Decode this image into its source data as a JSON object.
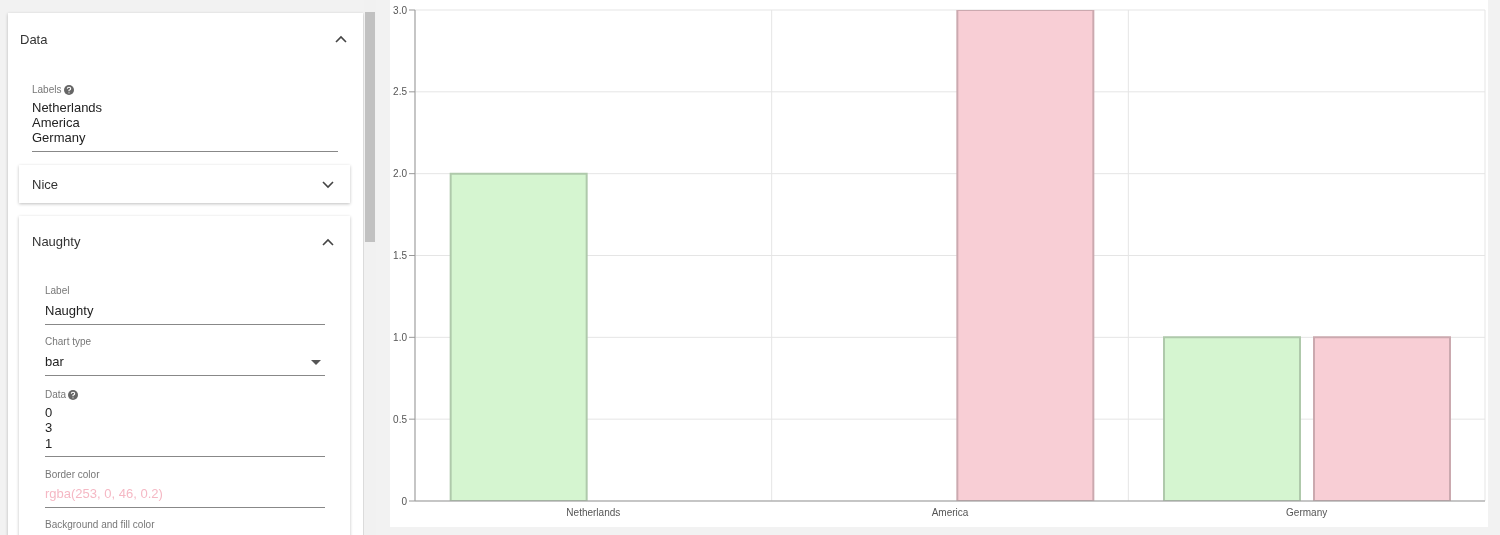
{
  "chart_data": [
    {
      "type": "other",
      "annotations": [
        "Data",
        "Labels",
        "Netherlands",
        "America",
        "Germany",
        "Nice",
        "Naughty",
        "Label",
        "Naughty",
        "Chart type",
        "bar",
        "Data",
        "0",
        "3",
        "1",
        "Border color",
        "rgba(253, 0, 46, 0.2)",
        "Background and fill color"
      ]
    },
    {
      "type": "bar",
      "categories": [
        "Netherlands",
        "America",
        "Germany"
      ],
      "series": [
        {
          "color": "#d5f5d0",
          "values": [
            2,
            0,
            1
          ]
        },
        {
          "color": "#f8ced5",
          "values": [
            0,
            3,
            1
          ]
        }
      ],
      "ylim": [
        0,
        3
      ],
      "yticks": [
        0,
        0.5,
        {
          "value": 1,
          "label": "1.0"
        },
        1.5,
        {
          "value": 2,
          "label": "2.0"
        },
        2.5,
        {
          "value": 3,
          "label": "3.0"
        }
      ],
      "grid": true,
      "legend": false
    }
  ]
}
